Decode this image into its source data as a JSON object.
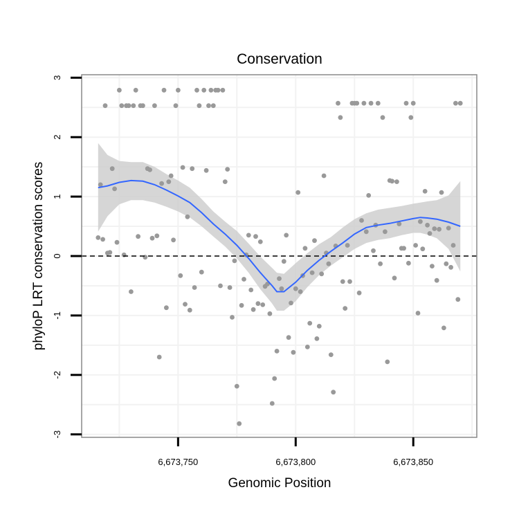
{
  "chart_data": {
    "type": "scatter",
    "title": "Conservation",
    "xlabel": "Genomic Position",
    "ylabel": "phyloP LRT conservation scores",
    "xlim": [
      6673709,
      6673877
    ],
    "ylim": [
      -3.05,
      3.05
    ],
    "x_ticks": [
      6673750,
      6673800,
      6673850
    ],
    "x_tick_labels": [
      "6,673,750",
      "6,673,800",
      "6,673,850"
    ],
    "y_ticks": [
      -3,
      -2,
      -1,
      0,
      1,
      2,
      3
    ],
    "y_tick_labels": [
      "-3",
      "-2",
      "-1",
      "0",
      "1",
      "2",
      "3"
    ],
    "grid": true,
    "reference_line": {
      "y": 0,
      "style": "dashed",
      "color": "#000000"
    },
    "colors": {
      "points": "#999999",
      "smooth_line": "#3366FF",
      "confidence_band": "#cccccc",
      "panel_border": "#888888",
      "grid": "#f2f2f2"
    },
    "points": [
      {
        "x": 6673716,
        "y": 0.31
      },
      {
        "x": 6673717,
        "y": 1.2
      },
      {
        "x": 6673718,
        "y": 0.28
      },
      {
        "x": 6673719,
        "y": 2.53
      },
      {
        "x": 6673720,
        "y": 0.05
      },
      {
        "x": 6673721,
        "y": 0.06
      },
      {
        "x": 6673722,
        "y": 1.47
      },
      {
        "x": 6673723,
        "y": 1.13
      },
      {
        "x": 6673724,
        "y": 0.23
      },
      {
        "x": 6673725,
        "y": 2.79
      },
      {
        "x": 6673726,
        "y": 2.53
      },
      {
        "x": 6673727,
        "y": 0.02
      },
      {
        "x": 6673728,
        "y": 2.53
      },
      {
        "x": 6673729,
        "y": 2.53
      },
      {
        "x": 6673730,
        "y": -0.6
      },
      {
        "x": 6673731,
        "y": 2.53
      },
      {
        "x": 6673732,
        "y": 2.79
      },
      {
        "x": 6673733,
        "y": 0.33
      },
      {
        "x": 6673734,
        "y": 2.53
      },
      {
        "x": 6673735,
        "y": 2.53
      },
      {
        "x": 6673736,
        "y": -0.02
      },
      {
        "x": 6673737,
        "y": 1.47
      },
      {
        "x": 6673738,
        "y": 1.45
      },
      {
        "x": 6673739,
        "y": 0.3
      },
      {
        "x": 6673740,
        "y": 2.53
      },
      {
        "x": 6673741,
        "y": 0.34
      },
      {
        "x": 6673742,
        "y": -1.7
      },
      {
        "x": 6673743,
        "y": 1.22
      },
      {
        "x": 6673744,
        "y": 2.79
      },
      {
        "x": 6673745,
        "y": -0.87
      },
      {
        "x": 6673746,
        "y": 1.25
      },
      {
        "x": 6673747,
        "y": 1.35
      },
      {
        "x": 6673748,
        "y": 0.27
      },
      {
        "x": 6673749,
        "y": 2.53
      },
      {
        "x": 6673750,
        "y": 2.79
      },
      {
        "x": 6673751,
        "y": -0.33
      },
      {
        "x": 6673752,
        "y": 1.49
      },
      {
        "x": 6673753,
        "y": -0.81
      },
      {
        "x": 6673754,
        "y": 0.66
      },
      {
        "x": 6673755,
        "y": -0.91
      },
      {
        "x": 6673756,
        "y": 1.47
      },
      {
        "x": 6673757,
        "y": -0.53
      },
      {
        "x": 6673758,
        "y": 2.79
      },
      {
        "x": 6673759,
        "y": 2.53
      },
      {
        "x": 6673760,
        "y": -0.27
      },
      {
        "x": 6673761,
        "y": 2.79
      },
      {
        "x": 6673762,
        "y": 1.44
      },
      {
        "x": 6673763,
        "y": 2.53
      },
      {
        "x": 6673764,
        "y": 2.79
      },
      {
        "x": 6673765,
        "y": 2.53
      },
      {
        "x": 6673766,
        "y": 2.79
      },
      {
        "x": 6673767,
        "y": 2.79
      },
      {
        "x": 6673768,
        "y": -0.5
      },
      {
        "x": 6673769,
        "y": 2.79
      },
      {
        "x": 6673770,
        "y": 1.25
      },
      {
        "x": 6673771,
        "y": 1.46
      },
      {
        "x": 6673772,
        "y": -0.53
      },
      {
        "x": 6673773,
        "y": -1.03
      },
      {
        "x": 6673774,
        "y": -0.08
      },
      {
        "x": 6673775,
        "y": -2.19
      },
      {
        "x": 6673776,
        "y": -2.82
      },
      {
        "x": 6673777,
        "y": -0.83
      },
      {
        "x": 6673778,
        "y": -0.39
      },
      {
        "x": 6673779,
        "y": 0.02
      },
      {
        "x": 6673780,
        "y": 0.35
      },
      {
        "x": 6673781,
        "y": -0.57
      },
      {
        "x": 6673782,
        "y": -0.9
      },
      {
        "x": 6673783,
        "y": 0.33
      },
      {
        "x": 6673784,
        "y": -0.8
      },
      {
        "x": 6673785,
        "y": 0.24
      },
      {
        "x": 6673786,
        "y": -0.82
      },
      {
        "x": 6673787,
        "y": -0.51
      },
      {
        "x": 6673788,
        "y": -0.47
      },
      {
        "x": 6673789,
        "y": -0.97
      },
      {
        "x": 6673790,
        "y": -2.48
      },
      {
        "x": 6673791,
        "y": -2.06
      },
      {
        "x": 6673792,
        "y": -1.6
      },
      {
        "x": 6673793,
        "y": -0.38
      },
      {
        "x": 6673794,
        "y": -0.55
      },
      {
        "x": 6673795,
        "y": -0.09
      },
      {
        "x": 6673796,
        "y": 0.35
      },
      {
        "x": 6673797,
        "y": -1.37
      },
      {
        "x": 6673798,
        "y": -0.79
      },
      {
        "x": 6673799,
        "y": -1.62
      },
      {
        "x": 6673800,
        "y": -0.55
      },
      {
        "x": 6673801,
        "y": 1.07
      },
      {
        "x": 6673802,
        "y": -0.6
      },
      {
        "x": 6673803,
        "y": -0.33
      },
      {
        "x": 6673804,
        "y": 0.13
      },
      {
        "x": 6673805,
        "y": -1.53
      },
      {
        "x": 6673806,
        "y": -1.13
      },
      {
        "x": 6673807,
        "y": -0.28
      },
      {
        "x": 6673808,
        "y": 0.26
      },
      {
        "x": 6673809,
        "y": -1.39
      },
      {
        "x": 6673810,
        "y": -1.18
      },
      {
        "x": 6673811,
        "y": -0.3
      },
      {
        "x": 6673812,
        "y": 1.35
      },
      {
        "x": 6673813,
        "y": 0.05
      },
      {
        "x": 6673814,
        "y": -0.13
      },
      {
        "x": 6673815,
        "y": -1.66
      },
      {
        "x": 6673816,
        "y": -2.29
      },
      {
        "x": 6673817,
        "y": 0.17
      },
      {
        "x": 6673818,
        "y": 2.57
      },
      {
        "x": 6673819,
        "y": 2.33
      },
      {
        "x": 6673820,
        "y": -0.43
      },
      {
        "x": 6673821,
        "y": -0.88
      },
      {
        "x": 6673822,
        "y": 0.18
      },
      {
        "x": 6673823,
        "y": -0.43
      },
      {
        "x": 6673824,
        "y": 2.57
      },
      {
        "x": 6673825,
        "y": 2.57
      },
      {
        "x": 6673826,
        "y": 2.57
      },
      {
        "x": 6673827,
        "y": -0.62
      },
      {
        "x": 6673828,
        "y": 0.6
      },
      {
        "x": 6673829,
        "y": 2.57
      },
      {
        "x": 6673830,
        "y": 0.41
      },
      {
        "x": 6673831,
        "y": 1.02
      },
      {
        "x": 6673832,
        "y": 2.57
      },
      {
        "x": 6673833,
        "y": 0.09
      },
      {
        "x": 6673834,
        "y": 0.52
      },
      {
        "x": 6673835,
        "y": 2.57
      },
      {
        "x": 6673836,
        "y": -0.13
      },
      {
        "x": 6673837,
        "y": 2.33
      },
      {
        "x": 6673838,
        "y": 0.41
      },
      {
        "x": 6673839,
        "y": -1.78
      },
      {
        "x": 6673840,
        "y": 1.27
      },
      {
        "x": 6673841,
        "y": 1.26
      },
      {
        "x": 6673842,
        "y": -0.37
      },
      {
        "x": 6673843,
        "y": 1.25
      },
      {
        "x": 6673844,
        "y": 0.54
      },
      {
        "x": 6673845,
        "y": 0.13
      },
      {
        "x": 6673846,
        "y": 0.13
      },
      {
        "x": 6673847,
        "y": 2.57
      },
      {
        "x": 6673848,
        "y": -0.12
      },
      {
        "x": 6673849,
        "y": 2.33
      },
      {
        "x": 6673850,
        "y": 2.57
      },
      {
        "x": 6673851,
        "y": 0.18
      },
      {
        "x": 6673852,
        "y": -0.96
      },
      {
        "x": 6673853,
        "y": 0.58
      },
      {
        "x": 6673854,
        "y": 0.12
      },
      {
        "x": 6673855,
        "y": 1.09
      },
      {
        "x": 6673856,
        "y": 0.52
      },
      {
        "x": 6673857,
        "y": 0.38
      },
      {
        "x": 6673858,
        "y": -0.17
      },
      {
        "x": 6673859,
        "y": 0.46
      },
      {
        "x": 6673860,
        "y": -0.41
      },
      {
        "x": 6673861,
        "y": 0.45
      },
      {
        "x": 6673862,
        "y": 1.07
      },
      {
        "x": 6673863,
        "y": -1.21
      },
      {
        "x": 6673864,
        "y": -0.13
      },
      {
        "x": 6673865,
        "y": 0.47
      },
      {
        "x": 6673866,
        "y": -0.19
      },
      {
        "x": 6673867,
        "y": 0.18
      },
      {
        "x": 6673868,
        "y": 2.57
      },
      {
        "x": 6673869,
        "y": -0.73
      },
      {
        "x": 6673870,
        "y": 2.57
      }
    ],
    "smooth": {
      "x": [
        6673716,
        6673720,
        6673725,
        6673730,
        6673735,
        6673740,
        6673745,
        6673750,
        6673755,
        6673760,
        6673765,
        6673770,
        6673775,
        6673780,
        6673785,
        6673790,
        6673792,
        6673795,
        6673800,
        6673805,
        6673810,
        6673815,
        6673820,
        6673825,
        6673830,
        6673835,
        6673840,
        6673845,
        6673850,
        6673853,
        6673856,
        6673860,
        6673865,
        6673870
      ],
      "y": [
        1.15,
        1.18,
        1.24,
        1.27,
        1.26,
        1.2,
        1.11,
        1.01,
        0.9,
        0.73,
        0.54,
        0.37,
        0.18,
        -0.04,
        -0.28,
        -0.5,
        -0.6,
        -0.6,
        -0.44,
        -0.24,
        -0.07,
        0.08,
        0.22,
        0.37,
        0.48,
        0.52,
        0.55,
        0.59,
        0.63,
        0.65,
        0.64,
        0.62,
        0.57,
        0.5
      ],
      "lower": [
        0.41,
        0.67,
        0.87,
        0.94,
        0.94,
        0.9,
        0.83,
        0.75,
        0.65,
        0.5,
        0.33,
        0.16,
        -0.04,
        -0.28,
        -0.56,
        -0.8,
        -0.92,
        -0.92,
        -0.76,
        -0.52,
        -0.32,
        -0.16,
        -0.02,
        0.12,
        0.22,
        0.27,
        0.3,
        0.35,
        0.39,
        0.39,
        0.36,
        0.3,
        0.12,
        -0.26
      ],
      "upper": [
        1.9,
        1.7,
        1.6,
        1.58,
        1.58,
        1.5,
        1.38,
        1.27,
        1.15,
        0.96,
        0.75,
        0.58,
        0.42,
        0.21,
        -0.01,
        -0.2,
        -0.28,
        -0.3,
        -0.12,
        0.05,
        0.2,
        0.32,
        0.48,
        0.62,
        0.72,
        0.78,
        0.81,
        0.84,
        0.88,
        0.9,
        0.92,
        0.94,
        1.02,
        1.26
      ]
    }
  }
}
